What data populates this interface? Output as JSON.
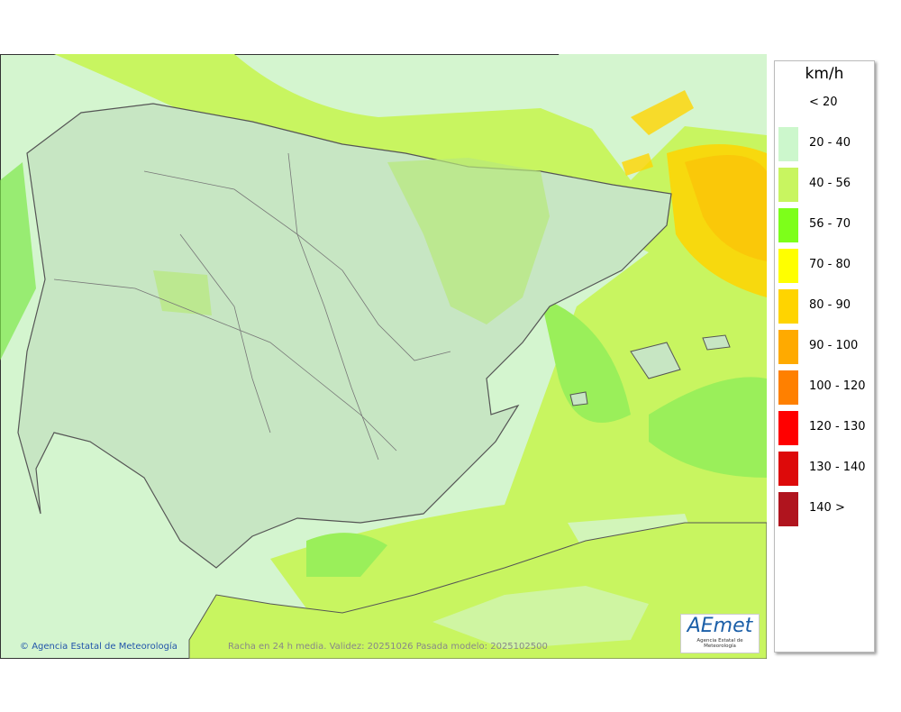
{
  "legend": {
    "title": "km/h",
    "items": [
      {
        "label": "< 20",
        "color": "#ffffff"
      },
      {
        "label": "20 - 40",
        "color": "#ccf7cc"
      },
      {
        "label": "40 - 56",
        "color": "#c8f560"
      },
      {
        "label": "56 - 70",
        "color": "#7dff1a"
      },
      {
        "label": "70 - 80",
        "color": "#ffff00"
      },
      {
        "label": "80 - 90",
        "color": "#ffd400"
      },
      {
        "label": "90 - 100",
        "color": "#ffaa00"
      },
      {
        "label": "100 - 120",
        "color": "#ff8000"
      },
      {
        "label": "120 - 130",
        "color": "#ff0000"
      },
      {
        "label": "130 - 140",
        "color": "#dd0a0a"
      },
      {
        "label": "140 >",
        "color": "#b0141e"
      }
    ]
  },
  "footer": {
    "credit": "Agencia Estatal de Meteorología",
    "caption": "Racha en 24 h media. Validez: 20251026 Pasada modelo: 2025102500"
  },
  "logo": {
    "name": "AEmet",
    "subtitle": "Agencia Estatal de Meteorología"
  }
}
